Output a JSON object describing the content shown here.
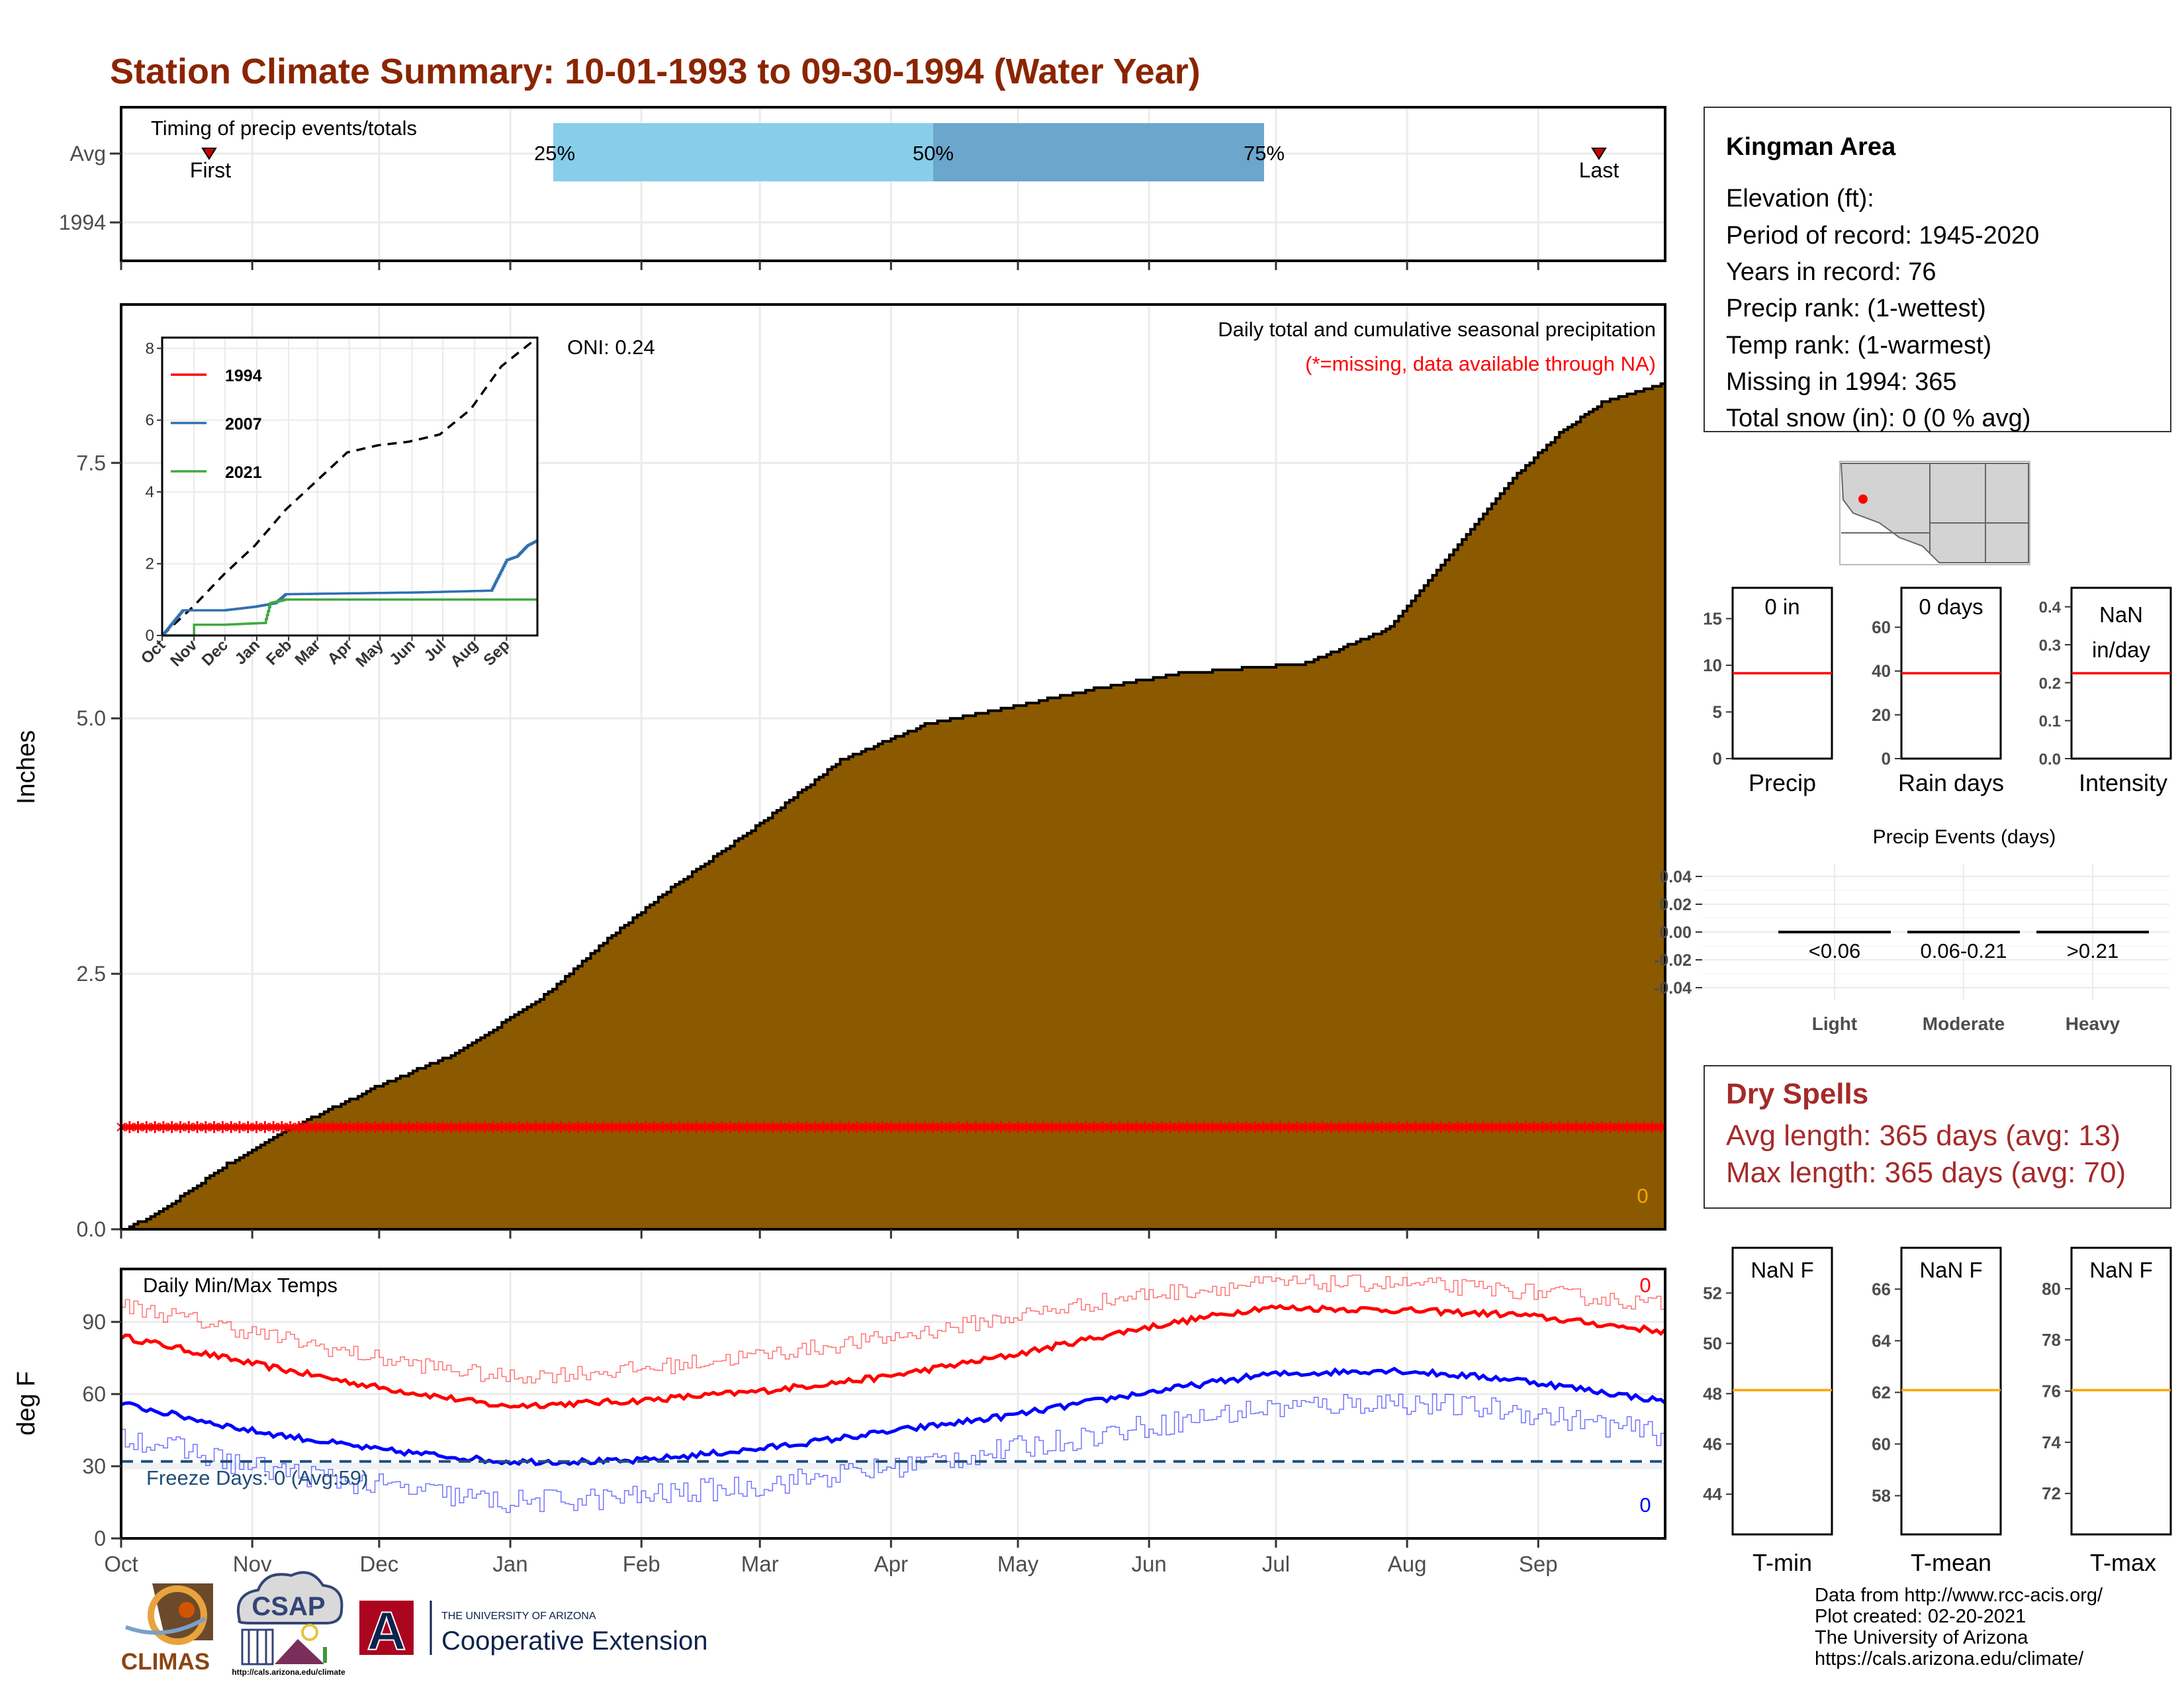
{
  "title": "Station Climate Summary: 10-01-1993 to 09-30-1994 (Water Year)",
  "months": [
    "Oct",
    "Nov",
    "Dec",
    "Jan",
    "Feb",
    "Mar",
    "Apr",
    "May",
    "Jun",
    "Jul",
    "Aug",
    "Sep"
  ],
  "timing": {
    "label": "Timing of precip events/totals",
    "rows": [
      "Avg",
      "1994"
    ],
    "pct25": "25%",
    "pct50": "50%",
    "pct75": "75%",
    "first": "First",
    "last": "Last"
  },
  "precip": {
    "ylabel": "Inches",
    "caption": "Daily total and cumulative seasonal precipitation",
    "missing_note": "(*=missing, data available through NA)",
    "oni": "ONI: 0.24",
    "count_label": "0",
    "yticks": [
      "0.0",
      "2.5",
      "5.0",
      "7.5"
    ],
    "inset": {
      "yticks": [
        "0",
        "2",
        "4",
        "6",
        "8"
      ],
      "xticks": [
        "Oct",
        "Nov",
        "Dec",
        "Jan",
        "Feb",
        "Mar",
        "Apr",
        "May",
        "Jun",
        "Jul",
        "Aug",
        "Sep"
      ],
      "legend": [
        "1994",
        "2007",
        "2021"
      ]
    }
  },
  "temps": {
    "ylabel": "deg F",
    "label": "Daily Min/Max Temps",
    "freeze": "Freeze Days: 0 (Avg:59)",
    "max_count": "0",
    "min_count": "0",
    "yticks": [
      "0",
      "30",
      "60",
      "90"
    ]
  },
  "station": {
    "name": "Kingman Area",
    "elevation": "Elevation (ft):",
    "period": "Period of record: 1945-2020",
    "years": "Years in record: 76",
    "precip_rank": "Precip rank:  (1-wettest)",
    "temp_rank": "Temp rank:  (1-warmest)",
    "missing": "Missing in 1994: 365",
    "snow": "Total snow (in): 0 (0 % avg)"
  },
  "mini_precip": {
    "precip": {
      "value": "0 in",
      "label": "Precip",
      "yticks": [
        "0",
        "5",
        "10",
        "15"
      ]
    },
    "rain": {
      "value": "0 days",
      "label": "Rain days",
      "yticks": [
        "0",
        "20",
        "40",
        "60"
      ]
    },
    "intensity": {
      "value1": "NaN",
      "value2": "in/day",
      "label": "Intensity",
      "yticks": [
        "0.0",
        "0.1",
        "0.2",
        "0.3",
        "0.4"
      ]
    }
  },
  "events": {
    "title": "Precip Events (days)",
    "yticks": [
      "0.04",
      "0.02",
      "0.00",
      "-0.02",
      "-0.04"
    ],
    "categories": [
      "Light",
      "Moderate",
      "Heavy"
    ],
    "ranges": [
      "<0.06",
      "0.06-0.21",
      ">0.21"
    ]
  },
  "dry_spells": {
    "title": "Dry Spells",
    "avg": "Avg length: 365 days (avg: 13)",
    "max": "Max length: 365 days (avg: 70)"
  },
  "mini_temp": {
    "tmin": {
      "value": "NaN F",
      "label": "T-min",
      "yticks": [
        "44",
        "46",
        "48",
        "50",
        "52"
      ]
    },
    "tmean": {
      "value": "NaN F",
      "label": "T-mean",
      "yticks": [
        "58",
        "60",
        "62",
        "64",
        "66"
      ]
    },
    "tmax": {
      "value": "NaN F",
      "label": "T-max",
      "yticks": [
        "72",
        "74",
        "76",
        "78",
        "80"
      ]
    }
  },
  "footer": {
    "credits": [
      "Data from http://www.rcc-acis.org/",
      "Plot created: 02-20-2021",
      "The University of Arizona",
      "https://cals.arizona.edu/climate/"
    ],
    "logo_climas": "CLIMAS",
    "logo_csap": "CSAP",
    "csap_url": "http://cals.arizona.edu/climate",
    "ua_small": "THE UNIVERSITY OF ARIZONA",
    "ua_big": "Cooperative Extension",
    "ua_letter": "A"
  },
  "colors": {
    "title": "#8B2500",
    "precip_fill": "#8B5A00",
    "tmax": "#FF0000",
    "tmin": "#0000FF",
    "freeze": "#1F4E79",
    "bar_light": "#87CEEB",
    "bar_dark": "#6CA6CD",
    "dry": "#A52A2A",
    "mean_line": "#FFA500"
  },
  "chart_data": [
    {
      "type": "area",
      "title": "Daily total and cumulative seasonal precipitation",
      "ylabel": "Inches",
      "x_unit": "day of water year",
      "ylim": [
        0,
        9.05
      ],
      "x": [
        0,
        8,
        25,
        40,
        60,
        80,
        100,
        115,
        130,
        150,
        170,
        190,
        210,
        230,
        250,
        265,
        280,
        300,
        310,
        320,
        330,
        340,
        350,
        365
      ],
      "y": [
        0,
        0.15,
        0.65,
        1.0,
        1.4,
        1.75,
        2.3,
        2.85,
        3.35,
        3.95,
        4.6,
        4.95,
        5.12,
        5.3,
        5.45,
        5.5,
        5.55,
        5.9,
        6.4,
        6.9,
        7.4,
        7.8,
        8.1,
        8.3
      ],
      "missing_marker_y": 1.0
    },
    {
      "type": "line",
      "title": "Inset cumulative precip",
      "ylim": [
        0,
        8.3
      ],
      "series": [
        {
          "name": "",
          "x": [
            0,
            30,
            60,
            90,
            120,
            150,
            180,
            210,
            240,
            270,
            300,
            330,
            365
          ],
          "y": [
            0,
            0.8,
            1.7,
            2.5,
            3.5,
            4.3,
            5.1,
            5.3,
            5.4,
            5.6,
            6.3,
            7.5,
            8.3
          ]
        },
        {
          "name": "2007",
          "x": [
            0,
            20,
            60,
            90,
            110,
            120,
            250,
            320,
            335,
            345,
            355,
            365
          ],
          "y": [
            0,
            0.7,
            0.7,
            0.8,
            0.9,
            1.15,
            1.2,
            1.25,
            2.1,
            2.2,
            2.5,
            2.65
          ]
        },
        {
          "name": "2021",
          "x": [
            0,
            30,
            31,
            60,
            100,
            105,
            120,
            365
          ],
          "y": [
            0,
            0,
            0.3,
            0.3,
            0.35,
            0.9,
            1.0,
            1.0
          ]
        }
      ]
    },
    {
      "type": "line",
      "title": "Daily Min/Max Temps",
      "ylabel": "deg F",
      "ylim": [
        0,
        112
      ],
      "series": [
        {
          "name": "",
          "x": [
            0,
            30,
            60,
            90,
            120,
            150,
            180,
            210,
            240,
            270,
            300,
            330,
            365
          ],
          "y": [
            84,
            73,
            63,
            55,
            57,
            61,
            67,
            76,
            87,
            96,
            95,
            93,
            86
          ]
        },
        {
          "name": "",
          "x": [
            0,
            30,
            60,
            90,
            120,
            150,
            180,
            210,
            240,
            270,
            300,
            330,
            365
          ],
          "y": [
            56,
            45,
            37,
            32,
            32,
            37,
            44,
            51,
            60,
            68,
            70,
            66,
            57
          ]
        },
        {
          "name": "",
          "x": [
            0,
            30,
            60,
            90,
            120,
            150,
            180,
            210,
            240,
            270,
            300,
            330,
            365
          ],
          "y": [
            97,
            86,
            75,
            67,
            70,
            76,
            83,
            92,
            101,
            106,
            106,
            103,
            97
          ]
        },
        {
          "name": "",
          "x": [
            0,
            30,
            60,
            90,
            120,
            150,
            180,
            210,
            240,
            270,
            300,
            330,
            365
          ],
          "y": [
            43,
            30,
            22,
            15,
            17,
            22,
            29,
            37,
            46,
            54,
            57,
            53,
            43
          ]
        }
      ],
      "freeze_line": 32
    }
  ]
}
